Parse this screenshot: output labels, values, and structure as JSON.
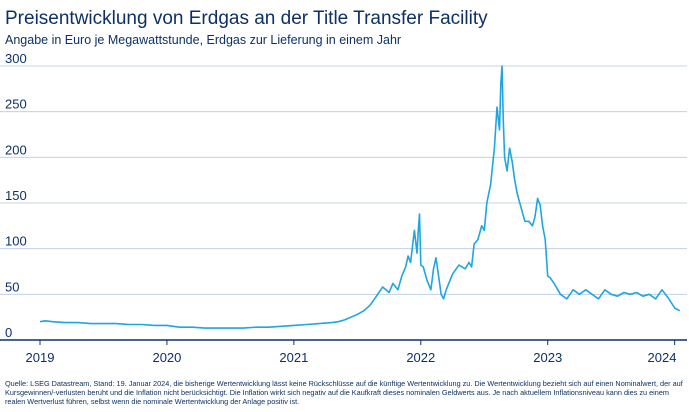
{
  "header": {
    "title": "Preisentwicklung von Erdgas an der Title Transfer Facility",
    "subtitle": "Angabe in Euro je Megawattstunde, Erdgas zur Lieferung in einem Jahr"
  },
  "footer": {
    "source": "Quelle: LSEG Datastream, Stand: 19. Januar 2024, die bisherige Wertentwicklung lässt keine Rückschlüsse auf die künftige Wertentwicklung zu. Die Wertentwicklung bezieht sich auf einen Nominalwert, der auf Kursgewinnen/-verlusten beruht und die Inflation nicht berücksichtigt. Die Inflation wirkt sich negativ auf die Kaufkraft dieses nominalen Geldwerts aus. Je nach aktuellem Inflationsniveau kann dies zu einem realen Wertverlust führen, selbst wenn die nominale Wertentwicklung der Anlage positiv ist."
  },
  "colors": {
    "line": "#1ea6de",
    "grid": "#b9c8e2",
    "axis": "#0d3166",
    "text": "#0d3166"
  },
  "chart_data": {
    "type": "line",
    "title": "Preisentwicklung von Erdgas an der Title Transfer Facility",
    "subtitle": "Angabe in Euro je Megawattstunde, Erdgas zur Lieferung in einem Jahr",
    "xlabel": "",
    "ylabel": "",
    "xlim": [
      2019.0,
      2024.05
    ],
    "ylim": [
      0,
      300
    ],
    "yticks": [
      0,
      50,
      100,
      150,
      200,
      250,
      300
    ],
    "xticks": [
      2019,
      2020,
      2021,
      2022,
      2023,
      2024
    ],
    "xtick_labels": [
      "2019",
      "2020",
      "2021",
      "2022",
      "2023",
      "2024"
    ],
    "grid": true,
    "legend": "none",
    "series": [
      {
        "x": [
          2019.0,
          2019.04,
          2019.1,
          2019.2,
          2019.3,
          2019.4,
          2019.5,
          2019.6,
          2019.7,
          2019.8,
          2019.9,
          2020.0,
          2020.1,
          2020.2,
          2020.3,
          2020.4,
          2020.5,
          2020.6,
          2020.7,
          2020.8,
          2020.9,
          2021.0,
          2021.1,
          2021.2,
          2021.3,
          2021.35,
          2021.4,
          2021.45,
          2021.5,
          2021.55,
          2021.6,
          2021.65,
          2021.7,
          2021.75,
          2021.78,
          2021.82,
          2021.85,
          2021.88,
          2021.9,
          2021.92,
          2021.95,
          2021.97,
          2021.98,
          2021.99,
          2022.0,
          2022.02,
          2022.05,
          2022.08,
          2022.1,
          2022.12,
          2022.14,
          2022.16,
          2022.18,
          2022.2,
          2022.25,
          2022.3,
          2022.35,
          2022.38,
          2022.4,
          2022.42,
          2022.45,
          2022.48,
          2022.5,
          2022.52,
          2022.55,
          2022.58,
          2022.6,
          2022.62,
          2022.63,
          2022.64,
          2022.65,
          2022.66,
          2022.68,
          2022.7,
          2022.72,
          2022.74,
          2022.76,
          2022.78,
          2022.8,
          2022.82,
          2022.85,
          2022.88,
          2022.9,
          2022.92,
          2022.94,
          2022.96,
          2022.98,
          2023.0,
          2023.02,
          2023.05,
          2023.08,
          2023.1,
          2023.15,
          2023.2,
          2023.25,
          2023.3,
          2023.35,
          2023.4,
          2023.45,
          2023.5,
          2023.55,
          2023.6,
          2023.65,
          2023.7,
          2023.75,
          2023.8,
          2023.85,
          2023.9,
          2023.95,
          2024.0,
          2024.04
        ],
        "y": [
          20,
          21,
          20,
          19,
          19,
          18,
          18,
          18,
          17,
          17,
          16,
          16,
          14,
          14,
          13,
          13,
          13,
          13,
          14,
          14,
          15,
          16,
          17,
          18,
          19,
          20,
          22,
          25,
          28,
          32,
          38,
          48,
          58,
          52,
          62,
          55,
          70,
          80,
          92,
          85,
          120,
          95,
          120,
          138,
          82,
          80,
          65,
          55,
          78,
          90,
          70,
          50,
          45,
          55,
          72,
          82,
          78,
          85,
          80,
          105,
          110,
          125,
          120,
          150,
          170,
          210,
          255,
          230,
          280,
          300,
          240,
          200,
          185,
          210,
          195,
          175,
          160,
          150,
          140,
          130,
          130,
          125,
          135,
          155,
          148,
          125,
          110,
          70,
          68,
          62,
          55,
          50,
          45,
          55,
          50,
          55,
          50,
          45,
          55,
          50,
          48,
          52,
          50,
          52,
          48,
          50,
          45,
          55,
          46,
          35,
          32
        ]
      }
    ]
  }
}
